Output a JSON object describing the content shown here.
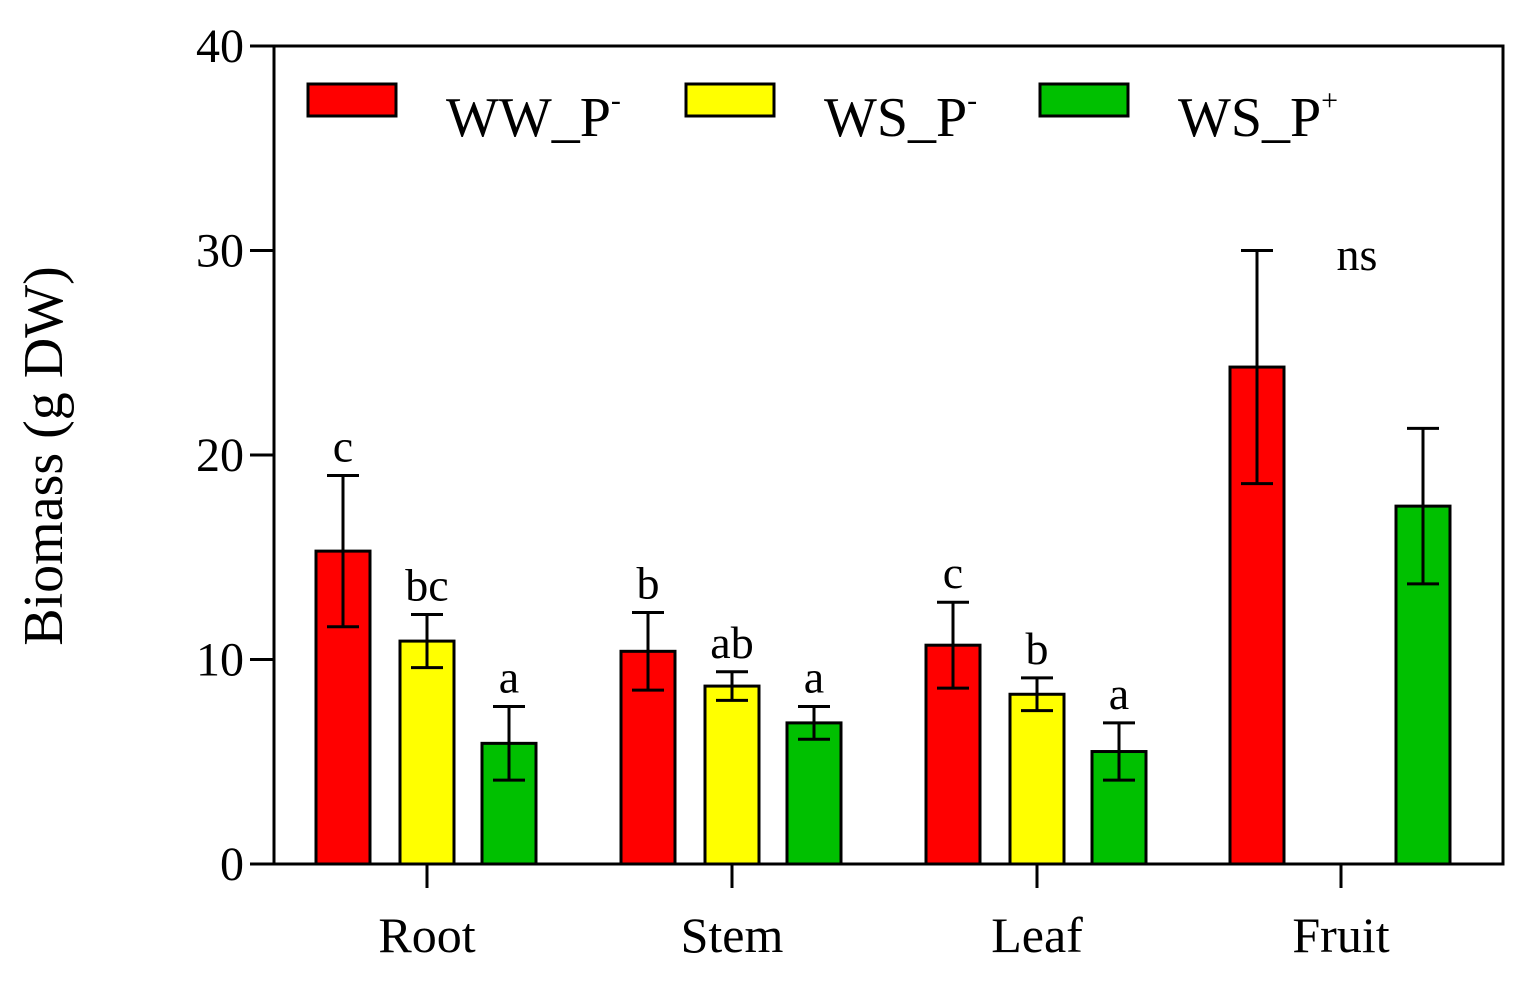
{
  "chart_data": {
    "type": "bar",
    "title": "",
    "xlabel": "",
    "ylabel": "Biomass (g DW)",
    "ylim": [
      0,
      40
    ],
    "yticks": [
      0,
      10,
      20,
      30,
      40
    ],
    "categories": [
      "Root",
      "Stem",
      "Leaf",
      "Fruit"
    ],
    "series": [
      {
        "name": "WW_P",
        "sup": "-",
        "color": "#ff0000",
        "values": [
          15.3,
          10.4,
          10.7,
          24.3
        ],
        "errors": [
          3.7,
          1.9,
          2.1,
          5.7
        ],
        "letters": [
          "c",
          "b",
          "c",
          ""
        ]
      },
      {
        "name": "WS_P",
        "sup": "-",
        "color": "#ffff00",
        "values": [
          10.9,
          8.7,
          8.3,
          null
        ],
        "errors": [
          1.3,
          0.7,
          0.8,
          null
        ],
        "letters": [
          "bc",
          "ab",
          "b",
          ""
        ]
      },
      {
        "name": "WS_P",
        "sup": "+",
        "color": "#00c000",
        "values": [
          5.9,
          6.9,
          5.5,
          17.5
        ],
        "errors": [
          1.8,
          0.8,
          1.4,
          3.8
        ],
        "letters": [
          "a",
          "a",
          "a",
          ""
        ]
      }
    ],
    "annotations": [
      {
        "text": "ns",
        "category": "Fruit"
      }
    ],
    "legend_position": "top-left"
  }
}
